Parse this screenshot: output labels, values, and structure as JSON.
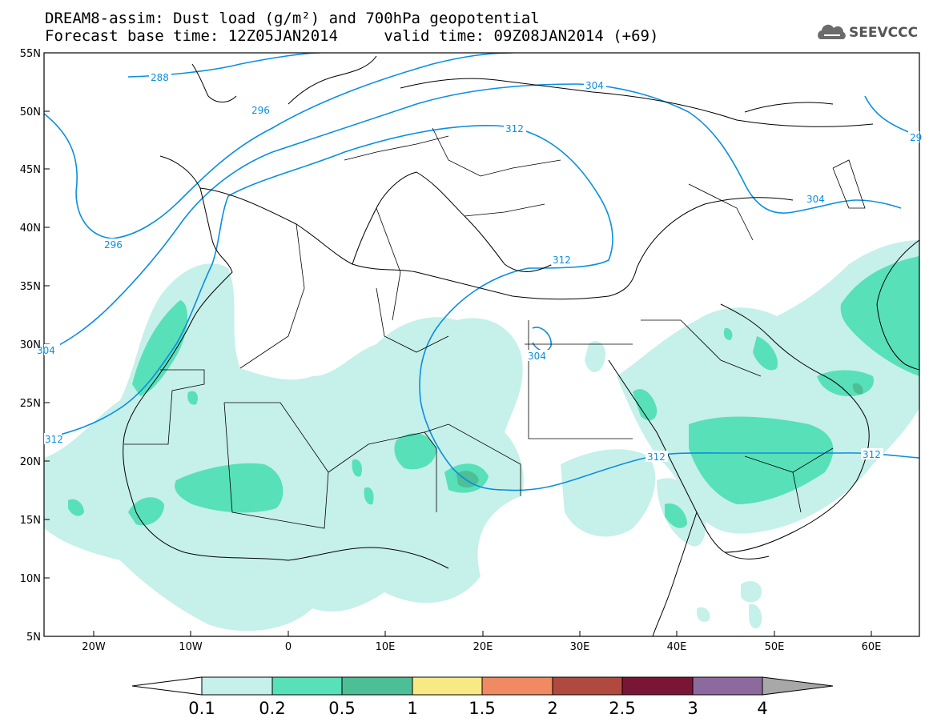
{
  "header": {
    "title_line1": "DREAM8-assim: Dust load (g/m²) and 700hPa geopotential",
    "title_line2": "Forecast base time: 12Z05JAN2014     valid time: 09Z08JAN2014 (+69)",
    "logo_text": "SEEVCCC"
  },
  "map": {
    "lat_labels": [
      "55N",
      "50N",
      "45N",
      "40N",
      "35N",
      "30N",
      "25N",
      "20N",
      "15N",
      "10N",
      "5N"
    ],
    "lon_labels": [
      "20W",
      "10W",
      "0",
      "10E",
      "20E",
      "30E",
      "40E",
      "50E",
      "60E"
    ],
    "contour_labels": [
      "288",
      "296",
      "296",
      "304",
      "304",
      "304",
      "304",
      "312",
      "312",
      "312",
      "312",
      "312",
      "29"
    ],
    "colors": {
      "level_0_1": "#c6f0ea",
      "level_0_2": "#58e0b8",
      "level_0_5": "#4dbf97",
      "level_1": "#f7ea84",
      "level_1_5": "#ef8a62",
      "level_2": "#b04a3f",
      "level_2_5": "#7a1535",
      "level_3": "#8c6a9e",
      "over": "#a8a8a8",
      "contour": "#0a8fe0"
    }
  },
  "legend": {
    "labels": [
      "0.1",
      "0.2",
      "0.5",
      "1",
      "1.5",
      "2",
      "2.5",
      "3",
      "4"
    ]
  }
}
